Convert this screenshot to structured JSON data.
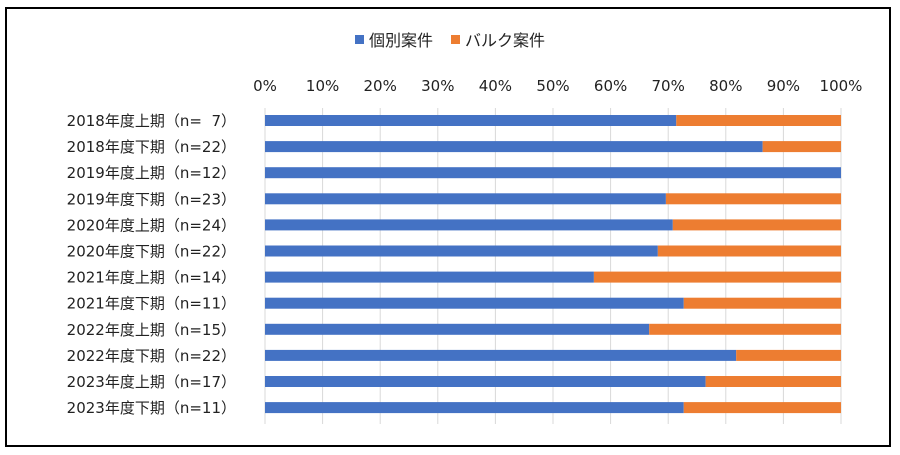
{
  "chart_data": {
    "type": "bar",
    "orientation": "horizontal",
    "stacked": true,
    "percent": true,
    "title": "",
    "xlabel": "",
    "ylabel": "",
    "xlim": [
      0,
      100
    ],
    "xticks": [
      "0%",
      "10%",
      "20%",
      "30%",
      "40%",
      "50%",
      "60%",
      "70%",
      "80%",
      "90%",
      "100%"
    ],
    "grid": true,
    "legend_position": "top",
    "categories": [
      "2018年度上期（n=  7）",
      "2018年度下期（n=22）",
      "2019年度上期（n=12）",
      "2019年度下期（n=23）",
      "2020年度上期（n=24）",
      "2020年度下期（n=22）",
      "2021年度上期（n=14）",
      "2021年度下期（n=11）",
      "2022年度上期（n=15）",
      "2022年度下期（n=22）",
      "2023年度上期（n=17）",
      "2023年度下期（n=11）"
    ],
    "series": [
      {
        "name": "個別案件",
        "color": "#4472c4",
        "values": [
          71.4,
          86.4,
          100.0,
          69.6,
          70.8,
          68.2,
          57.1,
          72.7,
          66.7,
          81.8,
          76.5,
          72.7
        ]
      },
      {
        "name": "バルク案件",
        "color": "#ed7d31",
        "values": [
          28.6,
          13.6,
          0.0,
          30.4,
          29.2,
          31.8,
          42.9,
          27.3,
          33.3,
          18.2,
          23.5,
          27.3
        ]
      }
    ]
  }
}
